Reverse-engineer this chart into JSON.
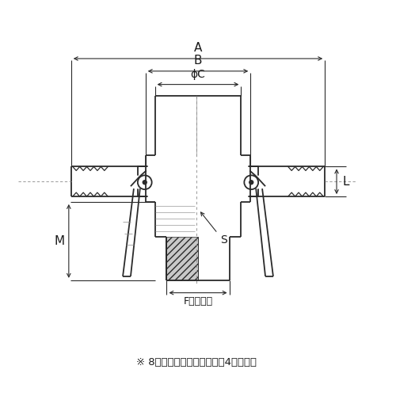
{
  "bg_color": "#ffffff",
  "line_color": "#2a2a2a",
  "dim_color": "#2a2a2a",
  "text_color": "#1a1a1a",
  "note_text": "）8インチ品のカムアームは4本です。",
  "label_A": "A",
  "label_B": "B",
  "label_phiC": "ϕC",
  "label_L": "L",
  "label_M": "M",
  "label_S": "S",
  "label_F": "F（対辺）"
}
